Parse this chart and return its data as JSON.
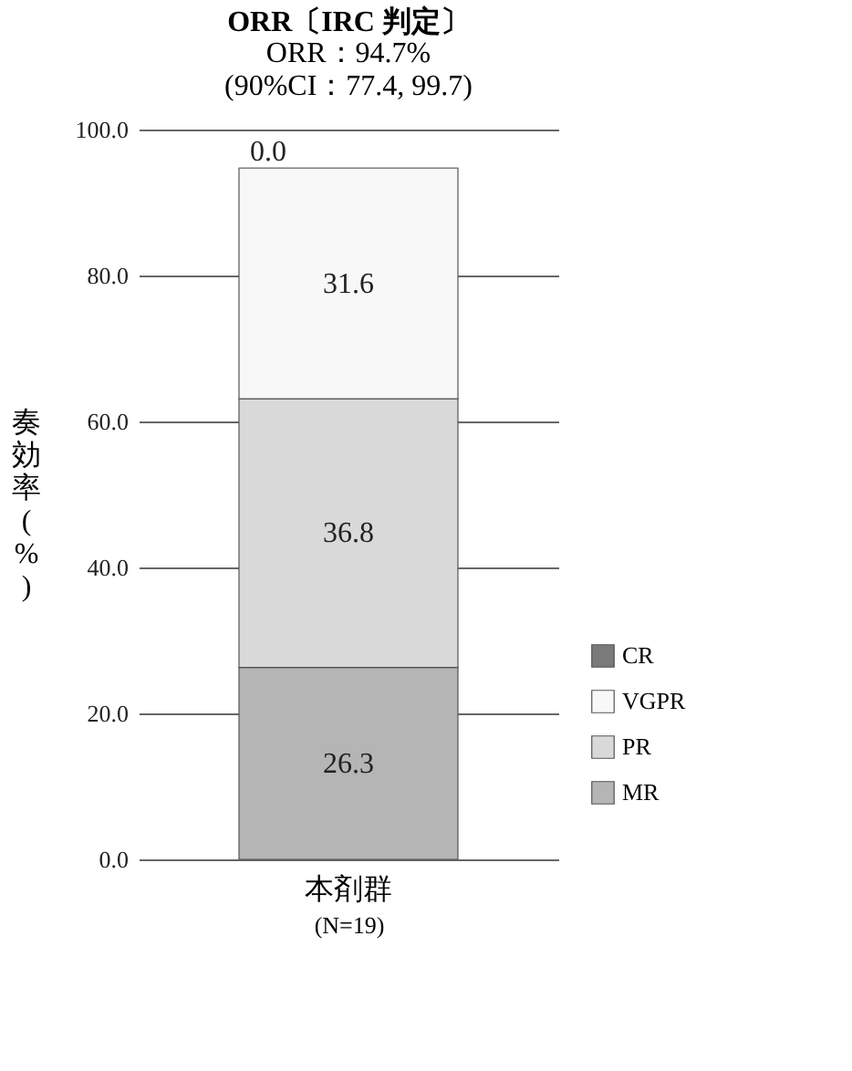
{
  "chart_data": {
    "type": "bar",
    "title": "ORR〔IRC 判定〕",
    "subtitle": "ORR：94.7%",
    "annotations": [
      "(90%CI：77.4, 99.7)"
    ],
    "ylabel": "奏効率(%)",
    "xlabel": "(N=19)",
    "categories": [
      "本剤群"
    ],
    "stacked": true,
    "series": [
      {
        "name": "MR",
        "color": "#b5b5b5",
        "values": [
          26.3
        ],
        "value_labels": [
          "26.3"
        ]
      },
      {
        "name": "PR",
        "color": "#d9d9d9",
        "values": [
          36.8
        ],
        "value_labels": [
          "36.8"
        ]
      },
      {
        "name": "VGPR",
        "color": "#f8f8f8",
        "values": [
          31.6
        ],
        "value_labels": [
          "31.6"
        ]
      },
      {
        "name": "CR",
        "color": "#7a7a7a",
        "values": [
          0.0
        ],
        "value_labels": [
          "0.0"
        ]
      }
    ],
    "ylim": [
      0,
      100
    ],
    "yticks": [
      {
        "value": 0,
        "label": "0.0"
      },
      {
        "value": 20,
        "label": "20.0"
      },
      {
        "value": 40,
        "label": "40.0"
      },
      {
        "value": 60,
        "label": "60.0"
      },
      {
        "value": 80,
        "label": "80.0"
      },
      {
        "value": 100,
        "label": "100.0"
      }
    ],
    "grid": "y",
    "legend": "bottom right"
  }
}
